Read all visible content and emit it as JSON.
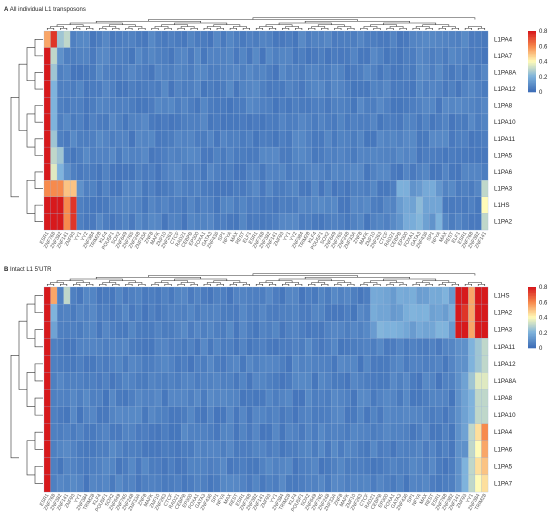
{
  "chart_data": [
    {
      "type": "heatmap",
      "panel_letter": "A",
      "title": "All individual L1 transposons",
      "rows": [
        "L1PA4",
        "L1PA7",
        "L1PA8A",
        "L1PA12",
        "L1PA8",
        "L1PA10",
        "L1PA11",
        "L1PA5",
        "L1PA6",
        "L1PA3",
        "L1HS",
        "L1PA2"
      ],
      "n_columns": 68,
      "column_label_words": [
        "ESR1",
        "ZNF768",
        "ZNF382",
        "ZNF141",
        "ZNF93",
        "YY1",
        "YY2",
        "ZNF384",
        "TRIM28",
        "KLF4",
        "POU5F1",
        "SOX2",
        "ZNF649",
        "ZNF765",
        "ZNF248",
        "ZNF33A",
        "ZNF8",
        "MAFK",
        "ZNF10",
        "ZNF263",
        "CTCF",
        "RAD21",
        "CEBPB",
        "EP300",
        "FOXA1",
        "GATA3",
        "ZNF436",
        "SP1",
        "NFYA",
        "MAX",
        "REST",
        "ELF1"
      ],
      "columns_labeled": false,
      "color_scale": {
        "min": 0,
        "max": 0.8,
        "ticks": [
          "0",
          "0.2",
          "0.4",
          "0.6",
          "0.8"
        ],
        "colors": [
          "#3f6fb8",
          "#7fb3dc",
          "#fffbb8",
          "#f78a4d",
          "#d7191c"
        ]
      },
      "row_values": [
        [
          0.55,
          0.75,
          0.25,
          0.3,
          0.05
        ],
        [
          0.85,
          0.3,
          0.1,
          0.05
        ],
        [
          0.85,
          0.25,
          0.05
        ],
        [
          0.85,
          0.2,
          0.05
        ],
        [
          0.85,
          0.2,
          0.05
        ],
        [
          0.85,
          0.2,
          0.05
        ],
        [
          0.85,
          0.25,
          0.05
        ],
        [
          0.85,
          0.3,
          0.25,
          0.05
        ],
        [
          0.85,
          0.35,
          0.2,
          0.1,
          0.05
        ],
        [
          0.6,
          0.6,
          0.6,
          0.5,
          0.5,
          0.1
        ],
        [
          0.85,
          0.85,
          0.85,
          0.6,
          0.75,
          0.05
        ],
        [
          0.85,
          0.85,
          0.8,
          0.6,
          0.75,
          0.05
        ]
      ]
    },
    {
      "type": "heatmap",
      "panel_letter": "B",
      "title": "Intact L1 5'UTR",
      "rows": [
        "L1HS",
        "L1PA2",
        "L1PA3",
        "L1PA11",
        "L1PA12",
        "L1PA8A",
        "L1PA8",
        "L1PA10",
        "L1PA4",
        "L1PA6",
        "L1PA5",
        "L1PA7"
      ],
      "n_columns": 68,
      "column_label_words": [
        "ESR1",
        "ZNF768",
        "ZNF382",
        "ZNF141",
        "ZNF93",
        "YY1",
        "ZNF384",
        "TRIM28",
        "KLF4",
        "POU5F1",
        "SOX2",
        "ZNF649",
        "ZNF765",
        "ZNF248",
        "ZNF33A",
        "ZNF8",
        "MAFK",
        "ZNF10",
        "ZNF263",
        "CTCF",
        "RAD21",
        "CEBPB",
        "EP300",
        "FOXA1",
        "GATA3",
        "ZNF436",
        "SP1",
        "NFYA",
        "MAX",
        "REST"
      ],
      "columns_labeled": false,
      "color_scale": {
        "min": 0,
        "max": 0.8,
        "ticks": [
          "0",
          "0.2",
          "0.4",
          "0.6",
          "0.8"
        ],
        "colors": [
          "#3f6fb8",
          "#7fb3dc",
          "#fffbb8",
          "#f78a4d",
          "#d7191c"
        ]
      },
      "row_values": [
        [
          0.85,
          0.55,
          0.05,
          0.3,
          0.05
        ],
        [
          0.85,
          0.2,
          0.05
        ],
        [
          0.85,
          0.15,
          0.05
        ],
        [
          0.85,
          0.05
        ],
        [
          0.85,
          0.05
        ],
        [
          0.85,
          0.05
        ],
        [
          0.85,
          0.05
        ],
        [
          0.85,
          0.05
        ],
        [
          0.85,
          0.05
        ],
        [
          0.85,
          0.05
        ],
        [
          0.85,
          0.05
        ],
        [
          0.85,
          0.05
        ]
      ],
      "right_block": [
        [
          0.85,
          0.85,
          0.55,
          0.85,
          0.85
        ],
        [
          0.85,
          0.75,
          0.55,
          0.8,
          0.85
        ],
        [
          0.85,
          0.85,
          0.55,
          0.8,
          0.85
        ],
        [
          0.1,
          0.1,
          0.2,
          0.25,
          0.3
        ],
        [
          0.1,
          0.1,
          0.2,
          0.25,
          0.3
        ],
        [
          0.1,
          0.15,
          0.25,
          0.35,
          0.35
        ],
        [
          0.1,
          0.15,
          0.2,
          0.3,
          0.3
        ],
        [
          0.1,
          0.15,
          0.2,
          0.3,
          0.3
        ],
        [
          0.1,
          0.15,
          0.3,
          0.45,
          0.6
        ],
        [
          0.1,
          0.1,
          0.3,
          0.4,
          0.55
        ],
        [
          0.1,
          0.2,
          0.3,
          0.45,
          0.5
        ],
        [
          0.1,
          0.2,
          0.3,
          0.4,
          0.45
        ]
      ]
    }
  ]
}
